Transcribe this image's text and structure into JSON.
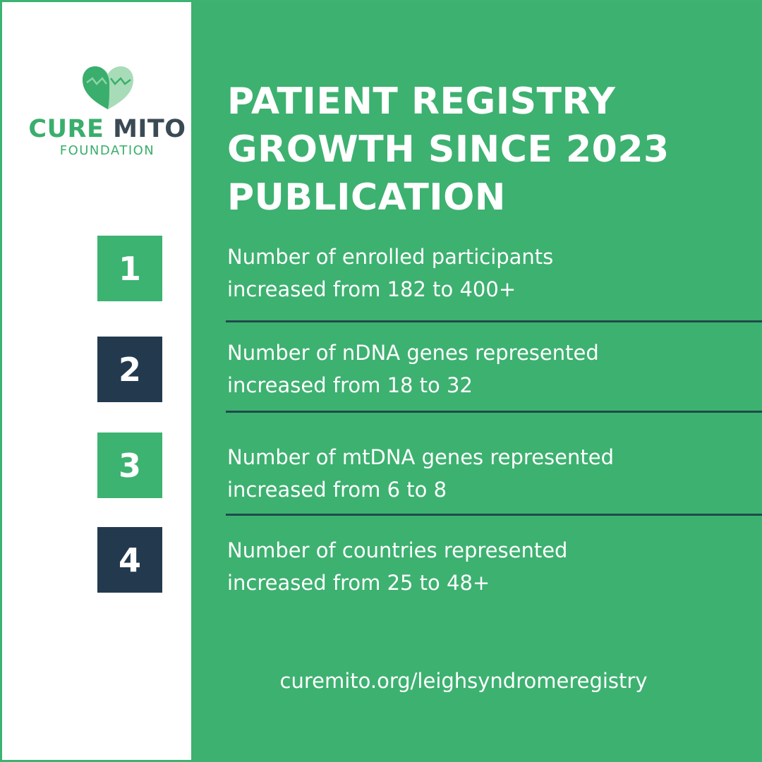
{
  "brand": {
    "name_part1": "CURE",
    "name_part2": "MITO",
    "subtitle": "FOUNDATION",
    "colors": {
      "green": "#3cb371",
      "navy": "#233a4e",
      "gray": "#3a4a55"
    }
  },
  "title": {
    "line1": "PATIENT REGISTRY",
    "line2": "GROWTH SINCE 2023",
    "line3": "PUBLICATION"
  },
  "items": [
    {
      "number": "1",
      "line1": "Number of enrolled participants",
      "line2": "increased from 182 to 400+"
    },
    {
      "number": "2",
      "line1": "Number of nDNA genes represented",
      "line2": "increased from 18 to 32"
    },
    {
      "number": "3",
      "line1": "Number of mtDNA genes represented",
      "line2": "increased from 6 to 8"
    },
    {
      "number": "4",
      "line1": "Number of countries represented",
      "line2": "increased from 25 to 48+"
    }
  ],
  "footer": {
    "url": "curemito.org/leighsyndromeregistry"
  }
}
